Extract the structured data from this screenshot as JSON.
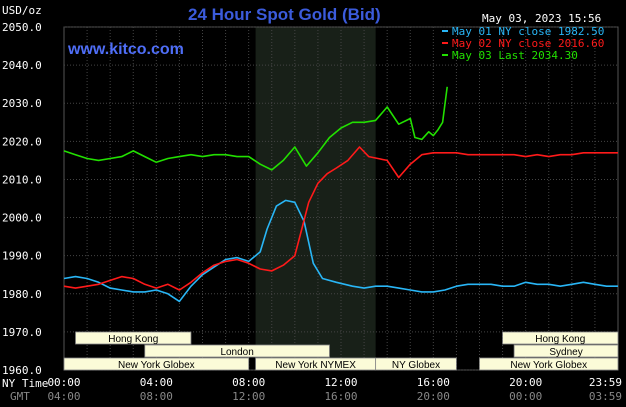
{
  "chart_data": {
    "type": "line",
    "title": "24 Hour Spot Gold (Bid)",
    "website": "www.kitco.com",
    "timestamp": "May 03, 2023 15:56",
    "ylabel": "USD/oz",
    "ylim": [
      1960,
      2050
    ],
    "yticks": [
      "2050.0",
      "2040.0",
      "2030.0",
      "2020.0",
      "2010.0",
      "2000.0",
      "1990.0",
      "1980.0",
      "1970.0",
      "1960.0"
    ],
    "xlim": [
      0,
      24
    ],
    "x_axis_label": "NY Time",
    "x_axis_label2": "GMT",
    "ny_time_ticks": [
      {
        "h": 0,
        "label": "00:00"
      },
      {
        "h": 4,
        "label": "04:00"
      },
      {
        "h": 8,
        "label": "08:00"
      },
      {
        "h": 12,
        "label": "12:00"
      },
      {
        "h": 16,
        "label": "16:00"
      },
      {
        "h": 20,
        "label": "20:00"
      },
      {
        "h": 24,
        "label": "23:59"
      }
    ],
    "gmt_ticks": [
      {
        "h": 0,
        "label": "04:00"
      },
      {
        "h": 4,
        "label": "08:00"
      },
      {
        "h": 8,
        "label": "12:00"
      },
      {
        "h": 12,
        "label": "16:00"
      },
      {
        "h": 16,
        "label": "20:00"
      },
      {
        "h": 20,
        "label": "00:00"
      },
      {
        "h": 24,
        "label": "03:59"
      }
    ],
    "shaded_band": [
      8.3,
      13.5
    ],
    "grid": true,
    "legend_position": "top-right",
    "sessions": [
      {
        "label": "Hong Kong",
        "start": 0.5,
        "end": 5.5,
        "row": 0
      },
      {
        "label": "Hong Kong",
        "start": 19.0,
        "end": 24.0,
        "row": 0
      },
      {
        "label": "London",
        "start": 3.5,
        "end": 11.5,
        "row": 1
      },
      {
        "label": "Sydney",
        "start": 19.5,
        "end": 24.0,
        "row": 1
      },
      {
        "label": "New York Globex",
        "start": 0.0,
        "end": 8.0,
        "row": 2
      },
      {
        "label": "New York NYMEX",
        "start": 8.3,
        "end": 13.5,
        "row": 2
      },
      {
        "label": "NY Globex",
        "start": 13.5,
        "end": 17.0,
        "row": 2
      },
      {
        "label": "New York Globex",
        "start": 18.0,
        "end": 24.0,
        "row": 2
      }
    ],
    "series": [
      {
        "name": "May 01 NY close 1982.50",
        "color": "#29b6f6",
        "x": [
          0,
          0.5,
          1,
          1.5,
          2,
          2.5,
          3,
          3.5,
          4,
          4.5,
          5,
          5.5,
          6,
          6.5,
          7,
          7.5,
          8,
          8.5,
          8.8,
          9.2,
          9.6,
          10,
          10.4,
          10.8,
          11.2,
          11.8,
          12.5,
          13,
          13.5,
          14,
          14.5,
          15,
          15.5,
          16,
          16.5,
          17,
          17.5,
          18,
          18.5,
          19,
          19.5,
          20,
          20.5,
          21,
          21.5,
          22,
          22.5,
          23,
          23.5,
          24
        ],
        "y": [
          1984,
          1984.5,
          1984,
          1983,
          1981.5,
          1981,
          1980.5,
          1980.5,
          1981,
          1980,
          1978,
          1982,
          1985,
          1987,
          1989,
          1989.5,
          1988.5,
          1991,
          1997,
          2003,
          2004.5,
          2004,
          1999,
          1988,
          1984,
          1983,
          1982,
          1981.5,
          1982,
          1982,
          1981.5,
          1981,
          1980.5,
          1980.5,
          1981,
          1982,
          1982.5,
          1982.5,
          1982.5,
          1982,
          1982,
          1983,
          1982.5,
          1982.5,
          1982,
          1982.5,
          1983,
          1982.5,
          1982,
          1982
        ]
      },
      {
        "name": "May 02 NY close 2016.60",
        "color": "#ff1a1a",
        "x": [
          0,
          0.5,
          1,
          1.5,
          2,
          2.5,
          3,
          3.5,
          4,
          4.5,
          5,
          5.5,
          6,
          6.5,
          7,
          7.5,
          8,
          8.5,
          9,
          9.5,
          10,
          10.3,
          10.6,
          11,
          11.4,
          11.8,
          12.3,
          12.8,
          13.2,
          13.6,
          14,
          14.5,
          15,
          15.5,
          16,
          16.5,
          17,
          17.5,
          18,
          18.5,
          19,
          19.5,
          20,
          20.5,
          21,
          21.5,
          22,
          22.5,
          23,
          23.5,
          24
        ],
        "y": [
          1982,
          1981.5,
          1982,
          1982.5,
          1983.5,
          1984.5,
          1984,
          1982.5,
          1981.5,
          1982.5,
          1981,
          1983,
          1985.5,
          1987.5,
          1988.5,
          1989,
          1988,
          1986.5,
          1986,
          1987.5,
          1990,
          1997,
          2004,
          2009,
          2011.5,
          2013,
          2015,
          2018.5,
          2016,
          2015.5,
          2015,
          2010.5,
          2014,
          2016.5,
          2017,
          2017,
          2017,
          2016.5,
          2016.5,
          2016.5,
          2016.5,
          2016.5,
          2016,
          2016.5,
          2016,
          2016.5,
          2016.5,
          2017,
          2017,
          2017,
          2017
        ]
      },
      {
        "name": "May 03 Last 2034.30",
        "color": "#22e000",
        "x": [
          0,
          0.5,
          1,
          1.5,
          2,
          2.5,
          3,
          3.5,
          4,
          4.5,
          5,
          5.5,
          6,
          6.5,
          7,
          7.5,
          8,
          8.5,
          9,
          9.5,
          10,
          10.5,
          11,
          11.5,
          12,
          12.5,
          13,
          13.5,
          14,
          14.5,
          15,
          15.2,
          15.5,
          15.8,
          16,
          16.2,
          16.4,
          16.6
        ],
        "y": [
          2017.5,
          2016.5,
          2015.5,
          2015,
          2015.5,
          2016,
          2017.5,
          2016,
          2014.5,
          2015.5,
          2016,
          2016.5,
          2016,
          2016.5,
          2016.5,
          2016,
          2016,
          2014,
          2012.5,
          2015,
          2018.5,
          2013.5,
          2017,
          2021,
          2023.5,
          2025,
          2025,
          2025.5,
          2029,
          2024.5,
          2026,
          2021,
          2020.5,
          2022.5,
          2021.5,
          2023,
          2025,
          2034.3
        ]
      }
    ]
  }
}
